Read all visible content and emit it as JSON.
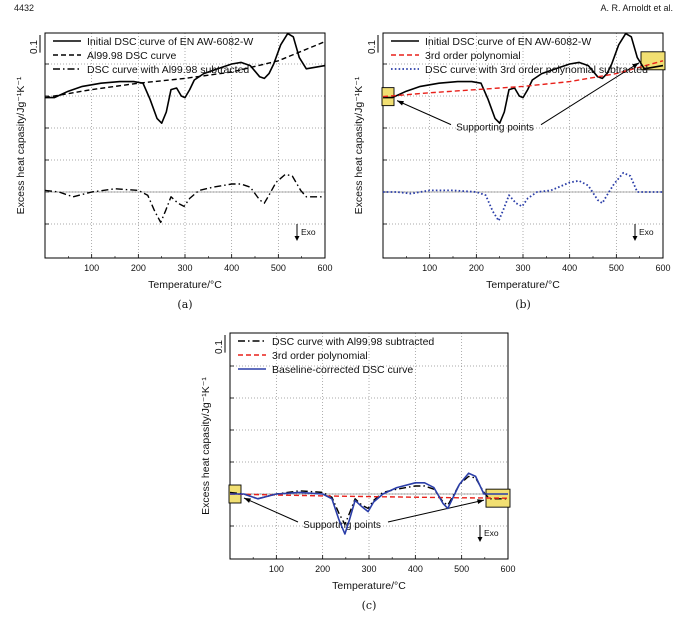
{
  "header": {
    "page_number": "4432",
    "author": "A. R. Arnoldt et al."
  },
  "chart_data": [
    {
      "type": "line",
      "panel": "(a)",
      "xlabel": "Temperature/°C",
      "ylabel": "Excess heat capasity/Jg⁻¹K⁻¹",
      "xlim": [
        0,
        600
      ],
      "x_ticks": [
        "100",
        "200",
        "300",
        "400",
        "500",
        "600"
      ],
      "scale_label": "0.1",
      "exo_label": "Exo",
      "grid": true,
      "legend_position": "top-left",
      "series": [
        {
          "name": "Initial DSC curve of EN AW-6082-W",
          "style": "solid",
          "color": "#000000",
          "points": [
            [
              0,
              2.95
            ],
            [
              20,
              2.95
            ],
            [
              50,
              3.15
            ],
            [
              80,
              3.3
            ],
            [
              120,
              3.4
            ],
            [
              160,
              3.45
            ],
            [
              190,
              3.45
            ],
            [
              210,
              3.4
            ],
            [
              225,
              2.9
            ],
            [
              240,
              2.3
            ],
            [
              250,
              2.15
            ],
            [
              260,
              2.5
            ],
            [
              270,
              3.2
            ],
            [
              282,
              3.25
            ],
            [
              292,
              3.0
            ],
            [
              300,
              2.95
            ],
            [
              310,
              3.2
            ],
            [
              320,
              3.5
            ],
            [
              340,
              3.7
            ],
            [
              370,
              3.85
            ],
            [
              400,
              4.0
            ],
            [
              420,
              4.05
            ],
            [
              440,
              3.95
            ],
            [
              460,
              3.6
            ],
            [
              470,
              3.55
            ],
            [
              480,
              3.7
            ],
            [
              490,
              4.0
            ],
            [
              505,
              4.6
            ],
            [
              520,
              4.95
            ],
            [
              532,
              4.85
            ],
            [
              545,
              4.2
            ],
            [
              560,
              3.85
            ],
            [
              580,
              3.9
            ],
            [
              600,
              3.95
            ]
          ]
        },
        {
          "name": "Al99.98 DSC curve",
          "style": "dashed",
          "color": "#000000",
          "points": [
            [
              0,
              2.95
            ],
            [
              100,
              3.2
            ],
            [
              200,
              3.4
            ],
            [
              300,
              3.55
            ],
            [
              400,
              3.75
            ],
            [
              500,
              4.1
            ],
            [
              600,
              4.7
            ]
          ]
        },
        {
          "name": "DSC curve with Al99.98 subtracted",
          "style": "dashdot",
          "color": "#000000",
          "points": [
            [
              0,
              0.05
            ],
            [
              30,
              0.0
            ],
            [
              60,
              -0.15
            ],
            [
              100,
              0.0
            ],
            [
              150,
              0.1
            ],
            [
              200,
              0.05
            ],
            [
              220,
              -0.1
            ],
            [
              235,
              -0.6
            ],
            [
              248,
              -0.95
            ],
            [
              258,
              -0.6
            ],
            [
              270,
              -0.15
            ],
            [
              285,
              -0.35
            ],
            [
              298,
              -0.45
            ],
            [
              310,
              -0.2
            ],
            [
              330,
              0.05
            ],
            [
              360,
              0.15
            ],
            [
              400,
              0.25
            ],
            [
              420,
              0.25
            ],
            [
              440,
              0.15
            ],
            [
              460,
              -0.25
            ],
            [
              470,
              -0.35
            ],
            [
              480,
              -0.1
            ],
            [
              495,
              0.3
            ],
            [
              515,
              0.55
            ],
            [
              530,
              0.5
            ],
            [
              548,
              0.05
            ],
            [
              560,
              -0.15
            ],
            [
              600,
              -0.15
            ]
          ]
        }
      ]
    },
    {
      "type": "line",
      "panel": "(b)",
      "xlabel": "Temperature/°C",
      "ylabel": "Excess heat capasity/Jg⁻¹K⁻¹",
      "xlim": [
        0,
        600
      ],
      "x_ticks": [
        "100",
        "200",
        "300",
        "400",
        "500",
        "600"
      ],
      "scale_label": "0.1",
      "exo_label": "Exo",
      "annotation": "Supporting points",
      "grid": true,
      "legend_position": "top-left",
      "series": [
        {
          "name": "Initial DSC curve of EN AW-6082-W",
          "style": "solid",
          "color": "#000000",
          "points": [
            [
              0,
              2.95
            ],
            [
              20,
              2.95
            ],
            [
              50,
              3.15
            ],
            [
              80,
              3.3
            ],
            [
              120,
              3.4
            ],
            [
              160,
              3.45
            ],
            [
              190,
              3.45
            ],
            [
              210,
              3.4
            ],
            [
              225,
              2.9
            ],
            [
              240,
              2.3
            ],
            [
              250,
              2.15
            ],
            [
              260,
              2.5
            ],
            [
              270,
              3.2
            ],
            [
              282,
              3.25
            ],
            [
              292,
              3.0
            ],
            [
              300,
              2.95
            ],
            [
              310,
              3.2
            ],
            [
              320,
              3.5
            ],
            [
              340,
              3.7
            ],
            [
              370,
              3.85
            ],
            [
              400,
              4.0
            ],
            [
              420,
              4.05
            ],
            [
              440,
              3.95
            ],
            [
              460,
              3.6
            ],
            [
              470,
              3.55
            ],
            [
              480,
              3.7
            ],
            [
              490,
              4.0
            ],
            [
              505,
              4.6
            ],
            [
              520,
              4.95
            ],
            [
              532,
              4.85
            ],
            [
              545,
              4.2
            ],
            [
              560,
              3.85
            ],
            [
              580,
              3.9
            ],
            [
              600,
              3.95
            ]
          ]
        },
        {
          "name": "3rd order polynomial",
          "style": "dashed",
          "color": "#e8201a",
          "points": [
            [
              0,
              2.98
            ],
            [
              100,
              3.1
            ],
            [
              200,
              3.2
            ],
            [
              300,
              3.3
            ],
            [
              400,
              3.45
            ],
            [
              500,
              3.7
            ],
            [
              600,
              4.1
            ]
          ]
        },
        {
          "name": "DSC curve with 3rd order polynomial subtracted",
          "style": "dotted",
          "color": "#2b3ea8",
          "points": [
            [
              0,
              0.0
            ],
            [
              30,
              0.0
            ],
            [
              60,
              -0.05
            ],
            [
              100,
              0.05
            ],
            [
              150,
              0.05
            ],
            [
              200,
              0.0
            ],
            [
              220,
              -0.1
            ],
            [
              235,
              -0.6
            ],
            [
              248,
              -0.9
            ],
            [
              258,
              -0.55
            ],
            [
              270,
              -0.1
            ],
            [
              285,
              -0.35
            ],
            [
              298,
              -0.45
            ],
            [
              310,
              -0.2
            ],
            [
              330,
              0.0
            ],
            [
              360,
              0.05
            ],
            [
              400,
              0.3
            ],
            [
              420,
              0.35
            ],
            [
              440,
              0.2
            ],
            [
              460,
              -0.25
            ],
            [
              470,
              -0.35
            ],
            [
              480,
              -0.1
            ],
            [
              495,
              0.25
            ],
            [
              515,
              0.6
            ],
            [
              530,
              0.5
            ],
            [
              545,
              0.0
            ],
            [
              600,
              0.0
            ]
          ]
        }
      ]
    },
    {
      "type": "line",
      "panel": "(c)",
      "xlabel": "Temperature/°C",
      "ylabel": "Excess heat capasity/Jg⁻¹K⁻¹",
      "xlim": [
        0,
        600
      ],
      "x_ticks": [
        "100",
        "200",
        "300",
        "400",
        "500",
        "600"
      ],
      "scale_label": "0.1",
      "exo_label": "Exo",
      "annotation": "Supporting points",
      "grid": true,
      "legend_position": "top-left",
      "series": [
        {
          "name": "DSC curve with Al99.98 subtracted",
          "style": "dashdot",
          "color": "#000000",
          "points": [
            [
              0,
              0.05
            ],
            [
              30,
              0.0
            ],
            [
              60,
              -0.15
            ],
            [
              100,
              0.0
            ],
            [
              150,
              0.1
            ],
            [
              200,
              0.05
            ],
            [
              220,
              -0.1
            ],
            [
              235,
              -0.6
            ],
            [
              248,
              -0.95
            ],
            [
              258,
              -0.6
            ],
            [
              270,
              -0.15
            ],
            [
              285,
              -0.35
            ],
            [
              298,
              -0.45
            ],
            [
              310,
              -0.2
            ],
            [
              330,
              0.05
            ],
            [
              360,
              0.15
            ],
            [
              400,
              0.25
            ],
            [
              420,
              0.25
            ],
            [
              440,
              0.15
            ],
            [
              460,
              -0.25
            ],
            [
              470,
              -0.35
            ],
            [
              480,
              -0.1
            ],
            [
              495,
              0.3
            ],
            [
              515,
              0.55
            ],
            [
              530,
              0.5
            ],
            [
              548,
              0.05
            ],
            [
              560,
              -0.15
            ],
            [
              600,
              -0.15
            ]
          ]
        },
        {
          "name": "3rd order polynomial",
          "style": "dashed",
          "color": "#e8201a",
          "points": [
            [
              0,
              0.0
            ],
            [
              100,
              -0.03
            ],
            [
              200,
              -0.06
            ],
            [
              300,
              -0.08
            ],
            [
              400,
              -0.1
            ],
            [
              500,
              -0.12
            ],
            [
              600,
              -0.13
            ]
          ]
        },
        {
          "name": "Baseline-corrected DSC curve",
          "style": "solid",
          "color": "#2b3ea8",
          "points": [
            [
              0,
              0.0
            ],
            [
              30,
              0.0
            ],
            [
              60,
              -0.15
            ],
            [
              100,
              0.0
            ],
            [
              150,
              0.05
            ],
            [
              200,
              0.0
            ],
            [
              220,
              -0.15
            ],
            [
              235,
              -0.8
            ],
            [
              248,
              -1.25
            ],
            [
              258,
              -0.8
            ],
            [
              270,
              -0.2
            ],
            [
              285,
              -0.4
            ],
            [
              298,
              -0.55
            ],
            [
              310,
              -0.25
            ],
            [
              330,
              0.0
            ],
            [
              360,
              0.2
            ],
            [
              400,
              0.35
            ],
            [
              420,
              0.35
            ],
            [
              440,
              0.2
            ],
            [
              460,
              -0.3
            ],
            [
              470,
              -0.45
            ],
            [
              480,
              -0.15
            ],
            [
              495,
              0.3
            ],
            [
              515,
              0.65
            ],
            [
              530,
              0.55
            ],
            [
              548,
              0.0
            ],
            [
              600,
              0.0
            ]
          ]
        }
      ]
    }
  ]
}
